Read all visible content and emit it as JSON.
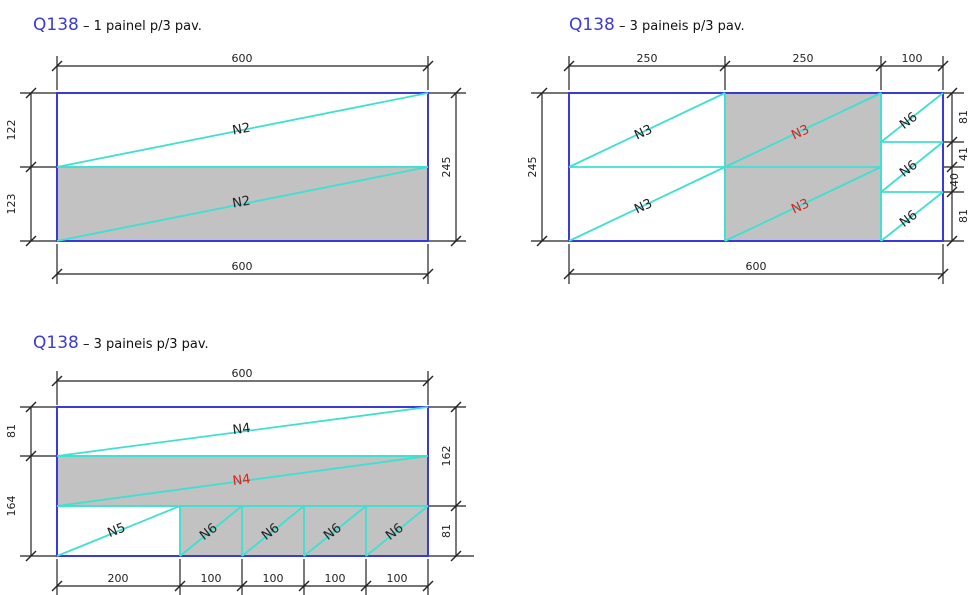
{
  "diagram1": {
    "title_code": "Q138",
    "title_rest": " – 1 painel p/3 pav.",
    "dim_top": "600",
    "dim_bottom": "600",
    "dim_left_upper": "122",
    "dim_left_lower": "123",
    "dim_right": "245",
    "panel_upper": "N2",
    "panel_lower": "N2"
  },
  "diagram2": {
    "title_code": "Q138",
    "title_rest": " – 3 paineis p/3 pav.",
    "dim_top_1": "250",
    "dim_top_2": "250",
    "dim_top_3": "100",
    "dim_bottom": "600",
    "dim_left": "245",
    "dim_right_1": "81",
    "dim_right_2": "41",
    "dim_right_3": "40",
    "dim_right_4": "81",
    "panel_a_upper": "N3",
    "panel_a_lower": "N3",
    "panel_b_upper": "N3",
    "panel_b_lower": "N3",
    "panel_c_1": "N6",
    "panel_c_2": "N6",
    "panel_c_3": "N6"
  },
  "diagram3": {
    "title_code": "Q138",
    "title_rest": " – 3 paineis p/3 pav.",
    "dim_top": "600",
    "dim_left_upper": "81",
    "dim_left_lower": "164",
    "dim_right_upper": "162",
    "dim_right_lower": "81",
    "dim_bottom_1": "200",
    "dim_bottom_2": "100",
    "dim_bottom_3": "100",
    "dim_bottom_4": "100",
    "dim_bottom_5": "100",
    "panel_top": "N4",
    "panel_mid": "N4",
    "panel_n5": "N5",
    "panel_n6_1": "N6",
    "panel_n6_2": "N6",
    "panel_n6_3": "N6",
    "panel_n6_4": "N6"
  },
  "colors": {
    "frame": "#3a3ad8",
    "diagonal": "#3fe0d0",
    "fill": "#c2c2c2",
    "highlight_text": "#e02020"
  }
}
